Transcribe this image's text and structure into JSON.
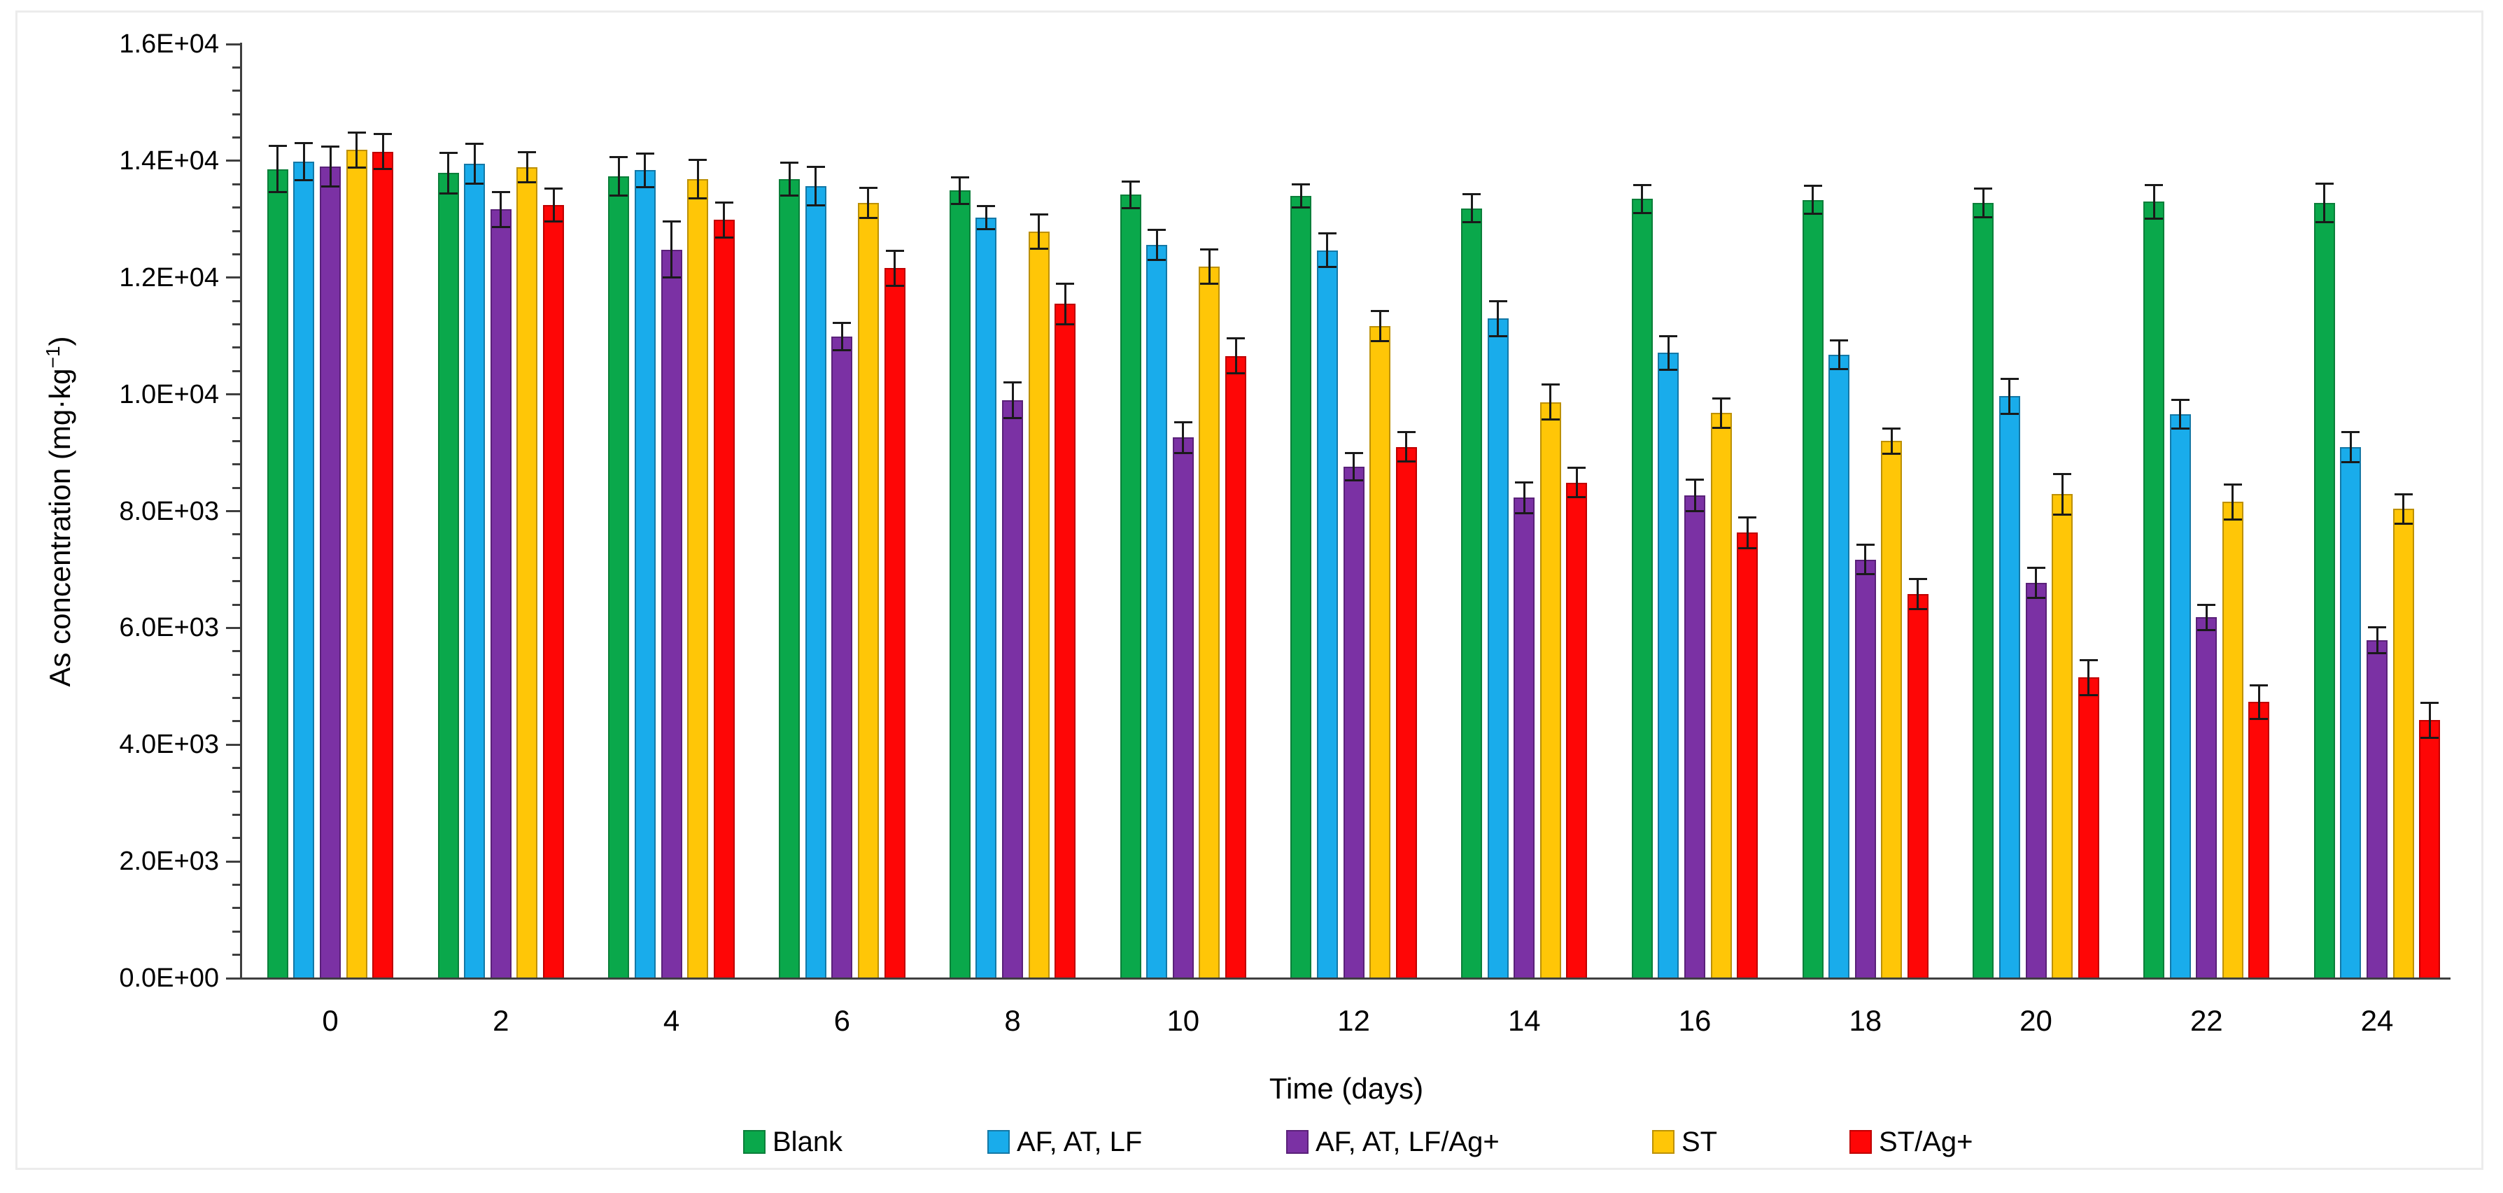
{
  "figure": {
    "y_axis_title_prefix": "As concentration (mg·kg",
    "y_axis_title_sup": "−1",
    "y_axis_title_suffix": ")",
    "x_axis_title": "Time (days)"
  },
  "colors": {
    "axis": "#3f3f3f",
    "error_bar": "#1a1a1a",
    "frame": "#ececec",
    "text": "#000000"
  },
  "chart_data": {
    "type": "bar",
    "title": "",
    "xlabel": "Time (days)",
    "ylabel": "As concentration (mg·kg−1)",
    "grid": false,
    "legend_position": "bottom",
    "ylim": [
      0,
      16000
    ],
    "y_major_step": 2000,
    "y_minor_step": 400,
    "y_tick_labels": [
      "0.0E+00",
      "2.0E+03",
      "4.0E+03",
      "6.0E+03",
      "8.0E+03",
      "1.0E+04",
      "1.2E+04",
      "1.4E+04",
      "1.6E+04"
    ],
    "categories": [
      0,
      2,
      4,
      6,
      8,
      10,
      12,
      14,
      16,
      18,
      20,
      22,
      24
    ],
    "x_tick_labels": [
      "0",
      "2",
      "4",
      "6",
      "8",
      "10",
      "12",
      "14",
      "16",
      "18",
      "20",
      "22",
      "24"
    ],
    "series": [
      {
        "name": "Blank",
        "fill": "#0aa84b",
        "border": "#0b7f3a",
        "values": [
          13860,
          13790,
          13740,
          13690,
          13490,
          13420,
          13400,
          13190,
          13350,
          13330,
          13280,
          13300,
          13280
        ],
        "errors": [
          400,
          350,
          330,
          280,
          230,
          230,
          200,
          240,
          240,
          240,
          240,
          290,
          330
        ]
      },
      {
        "name": "AF, AT, LF",
        "fill": "#19aceb",
        "border": "#1478a6",
        "values": [
          13990,
          13950,
          13840,
          13570,
          13030,
          12560,
          12470,
          11300,
          10710,
          10680,
          9970,
          9660,
          9100
        ],
        "errors": [
          320,
          340,
          290,
          330,
          200,
          260,
          290,
          300,
          290,
          250,
          300,
          250,
          260
        ]
      },
      {
        "name": "AF, AT, LF/Ag+",
        "fill": "#7b31a4",
        "border": "#5a2179",
        "values": [
          13900,
          13170,
          12480,
          10990,
          9900,
          9260,
          8760,
          8230,
          8270,
          7170,
          6770,
          6180,
          5790
        ],
        "errors": [
          340,
          300,
          480,
          230,
          300,
          260,
          230,
          260,
          270,
          250,
          260,
          220,
          220
        ]
      },
      {
        "name": "ST",
        "fill": "#ffc607",
        "border": "#bc9005",
        "values": [
          14190,
          13890,
          13690,
          13280,
          12790,
          12190,
          11170,
          9870,
          9680,
          9200,
          8290,
          8160,
          8040
        ],
        "errors": [
          300,
          260,
          330,
          260,
          290,
          290,
          260,
          300,
          250,
          220,
          350,
          300,
          250
        ]
      },
      {
        "name": "ST/Ag+",
        "fill": "#fe0606",
        "border": "#bf0000",
        "values": [
          14160,
          13240,
          12990,
          12160,
          11550,
          10660,
          9100,
          8490,
          7630,
          6580,
          5150,
          4730,
          4420
        ],
        "errors": [
          300,
          280,
          300,
          300,
          350,
          300,
          250,
          250,
          260,
          260,
          300,
          290,
          300
        ]
      }
    ]
  }
}
